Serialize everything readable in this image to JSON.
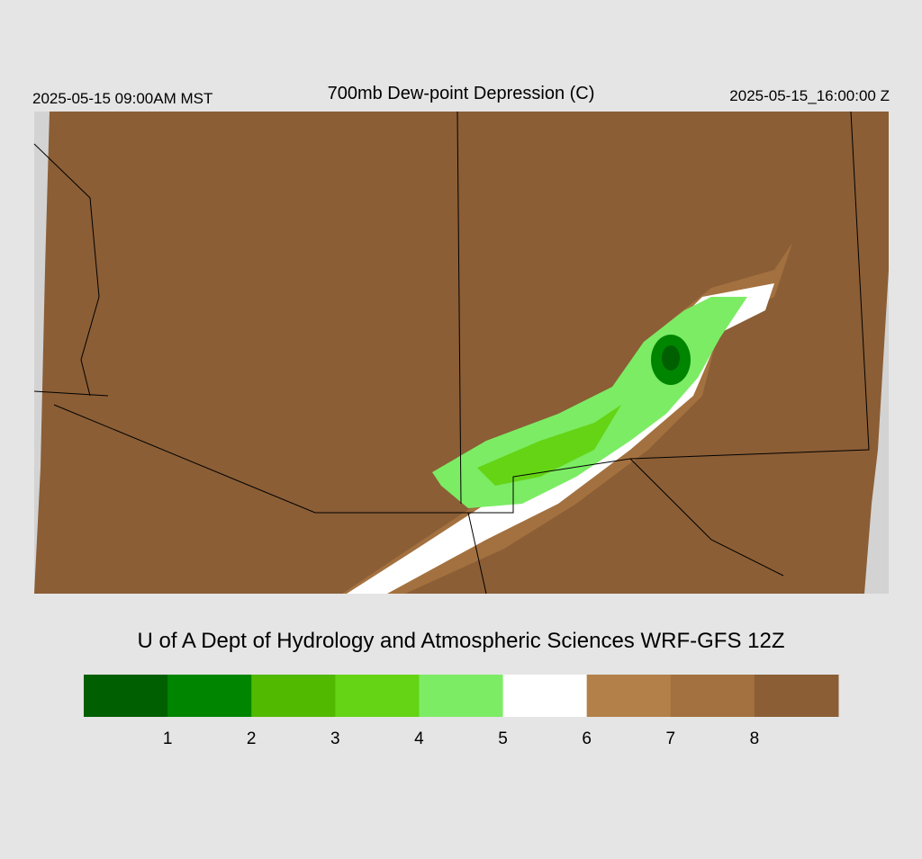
{
  "header": {
    "left": "2025-05-15 09:00AM MST",
    "title": "700mb Dew-point Depression (C)",
    "right": "2025-05-15_16:00:00 Z"
  },
  "credit": "U of A Dept of Hydrology and Atmospheric Sciences WRF-GFS 12Z",
  "colorbar": {
    "colors": [
      "#005f00",
      "#008500",
      "#50b900",
      "#64d414",
      "#7cec64",
      "#ffffff",
      "#b3804a",
      "#a3713f",
      "#8b5e36"
    ],
    "ticks": [
      1,
      2,
      3,
      4,
      5,
      6,
      7,
      8
    ]
  }
}
